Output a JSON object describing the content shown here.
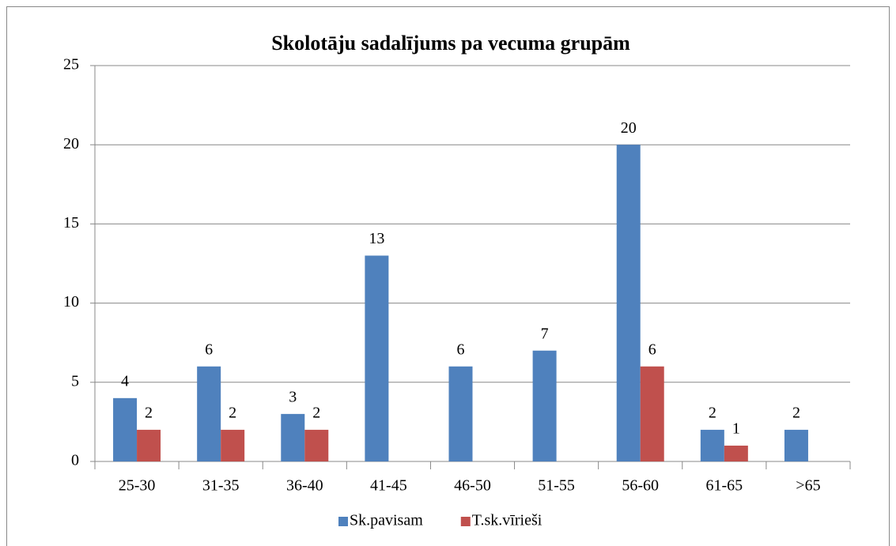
{
  "chart_data": {
    "type": "bar",
    "title": "Skolotāju sadalījums pa vecuma grupām",
    "categories": [
      "25-30",
      "31-35",
      "36-40",
      "41-45",
      "46-50",
      "51-55",
      "56-60",
      "61-65",
      ">65"
    ],
    "series": [
      {
        "name": "Sk.pavisam",
        "color": "#4f81bd",
        "values": [
          4,
          6,
          3,
          13,
          6,
          7,
          20,
          2,
          2
        ]
      },
      {
        "name": "T.sk.vīrieši",
        "color": "#c0504d",
        "values": [
          2,
          2,
          2,
          null,
          null,
          null,
          6,
          1,
          null
        ]
      }
    ],
    "ylim": [
      0,
      25
    ],
    "yticks": [
      0,
      5,
      10,
      15,
      20,
      25
    ],
    "grid": true,
    "legend": "bottom"
  }
}
